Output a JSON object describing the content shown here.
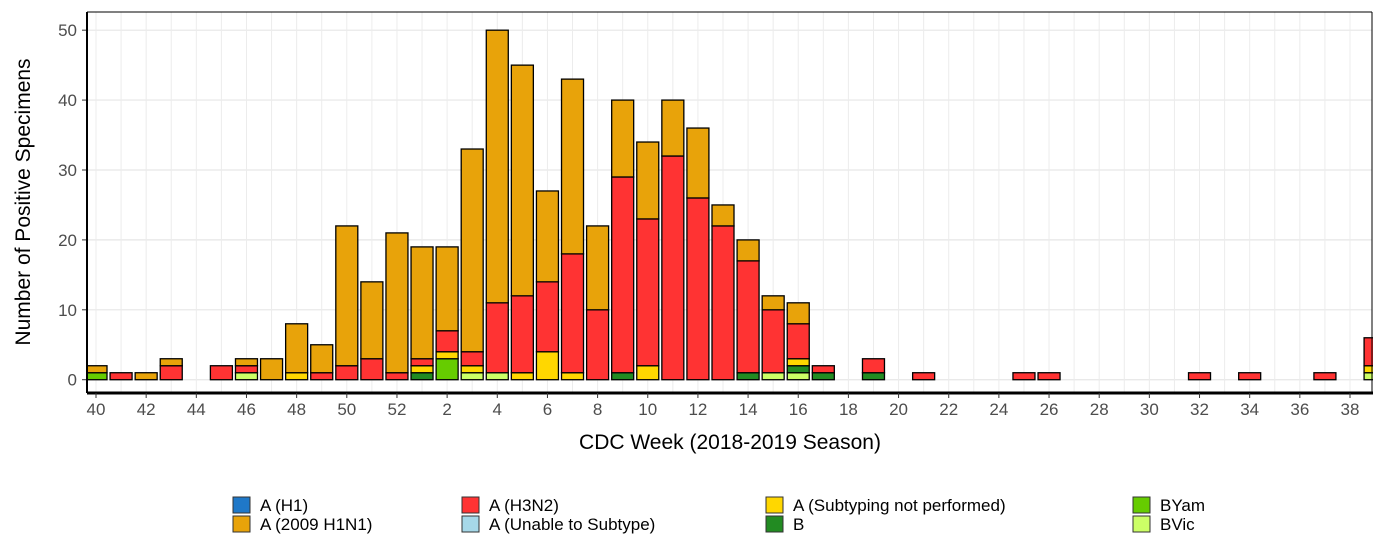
{
  "chart_data": {
    "type": "stacked-bar",
    "x_label": "CDC Week (2018-2019 Season)",
    "y_label": "Number of Positive Specimens",
    "categories": [
      "40",
      null,
      "42",
      null,
      "44",
      null,
      "46",
      null,
      "48",
      null,
      "50",
      null,
      "52",
      null,
      "2",
      null,
      "4",
      null,
      "6",
      null,
      "8",
      null,
      "10",
      null,
      "12",
      null,
      "14",
      null,
      "16",
      null,
      "18",
      null,
      "20",
      null,
      "22",
      null,
      "24",
      null,
      "26",
      null,
      "28",
      null,
      "30",
      null,
      "32",
      null,
      "34",
      null,
      "36",
      null,
      "38",
      null
    ],
    "series": [
      {
        "name": "A (H1)",
        "color": "#1f78c8",
        "values": [
          0,
          0,
          0,
          0,
          0,
          0,
          0,
          0,
          0,
          0,
          0,
          0,
          0,
          0,
          0,
          0,
          0,
          0,
          0,
          0,
          0,
          0,
          0,
          0,
          0,
          0,
          0,
          0,
          0,
          0,
          0,
          0,
          0,
          0,
          0,
          0,
          0,
          0,
          0,
          0,
          0,
          0,
          0,
          0,
          0,
          0,
          0,
          0,
          0,
          0,
          0,
          0
        ]
      },
      {
        "name": "A (2009 H1N1)",
        "color": "#e8a30a",
        "values": [
          1,
          0,
          1,
          1,
          0,
          0,
          1,
          3,
          7,
          4,
          20,
          11,
          20,
          16,
          12,
          29,
          39,
          33,
          13,
          25,
          12,
          11,
          11,
          8,
          10,
          3,
          3,
          2,
          3,
          0,
          0,
          0,
          0,
          0,
          0,
          0,
          0,
          0,
          0,
          0,
          0,
          0,
          0,
          0,
          0,
          0,
          0,
          0,
          0,
          0,
          0,
          0
        ]
      },
      {
        "name": "A (H3N2)",
        "color": "#ff3333",
        "values": [
          0,
          1,
          0,
          2,
          0,
          2,
          1,
          0,
          0,
          1,
          2,
          3,
          1,
          1,
          3,
          2,
          10,
          11,
          10,
          17,
          10,
          28,
          21,
          32,
          26,
          22,
          16,
          9,
          5,
          1,
          0,
          2,
          0,
          1,
          0,
          0,
          0,
          1,
          1,
          0,
          0,
          0,
          0,
          0,
          1,
          0,
          1,
          0,
          0,
          1,
          0,
          4
        ]
      },
      {
        "name": "A (Unable to Subtype)",
        "color": "#a6d8e8",
        "values": [
          0,
          0,
          0,
          0,
          0,
          0,
          0,
          0,
          0,
          0,
          0,
          0,
          0,
          0,
          0,
          0,
          0,
          0,
          0,
          0,
          0,
          0,
          0,
          0,
          0,
          0,
          0,
          0,
          0,
          0,
          0,
          0,
          0,
          0,
          0,
          0,
          0,
          0,
          0,
          0,
          0,
          0,
          0,
          0,
          0,
          0,
          0,
          0,
          0,
          0,
          0,
          0
        ]
      },
      {
        "name": "A (Subtyping not performed)",
        "color": "#ffd700",
        "values": [
          0,
          0,
          0,
          0,
          0,
          0,
          0,
          0,
          1,
          0,
          0,
          0,
          0,
          1,
          1,
          1,
          0,
          1,
          4,
          1,
          0,
          0,
          2,
          0,
          0,
          0,
          0,
          0,
          1,
          0,
          0,
          0,
          0,
          0,
          0,
          0,
          0,
          0,
          0,
          0,
          0,
          0,
          0,
          0,
          0,
          0,
          0,
          0,
          0,
          0,
          0,
          1
        ]
      },
      {
        "name": "B",
        "color": "#228b22",
        "values": [
          0,
          0,
          0,
          0,
          0,
          0,
          0,
          0,
          0,
          0,
          0,
          0,
          0,
          1,
          0,
          0,
          0,
          0,
          0,
          0,
          0,
          1,
          0,
          0,
          0,
          0,
          1,
          0,
          1,
          1,
          0,
          1,
          0,
          0,
          0,
          0,
          0,
          0,
          0,
          0,
          0,
          0,
          0,
          0,
          0,
          0,
          0,
          0,
          0,
          0,
          0,
          0
        ]
      },
      {
        "name": "BYam",
        "color": "#66cc00",
        "values": [
          1,
          0,
          0,
          0,
          0,
          0,
          0,
          0,
          0,
          0,
          0,
          0,
          0,
          0,
          3,
          0,
          0,
          0,
          0,
          0,
          0,
          0,
          0,
          0,
          0,
          0,
          0,
          0,
          0,
          0,
          0,
          0,
          0,
          0,
          0,
          0,
          0,
          0,
          0,
          0,
          0,
          0,
          0,
          0,
          0,
          0,
          0,
          0,
          0,
          0,
          0,
          0
        ]
      },
      {
        "name": "BVic",
        "color": "#ccff66",
        "values": [
          0,
          0,
          0,
          0,
          0,
          0,
          1,
          0,
          0,
          0,
          0,
          0,
          0,
          0,
          0,
          1,
          1,
          0,
          0,
          0,
          0,
          0,
          0,
          0,
          0,
          0,
          0,
          1,
          1,
          0,
          0,
          0,
          0,
          0,
          0,
          0,
          0,
          0,
          0,
          0,
          0,
          0,
          0,
          0,
          0,
          0,
          0,
          0,
          0,
          0,
          0,
          1
        ]
      }
    ],
    "ylim": [
      -1.9,
      52.6
    ],
    "yticks": [
      0,
      10,
      20,
      30,
      40,
      50
    ],
    "grid": true
  }
}
